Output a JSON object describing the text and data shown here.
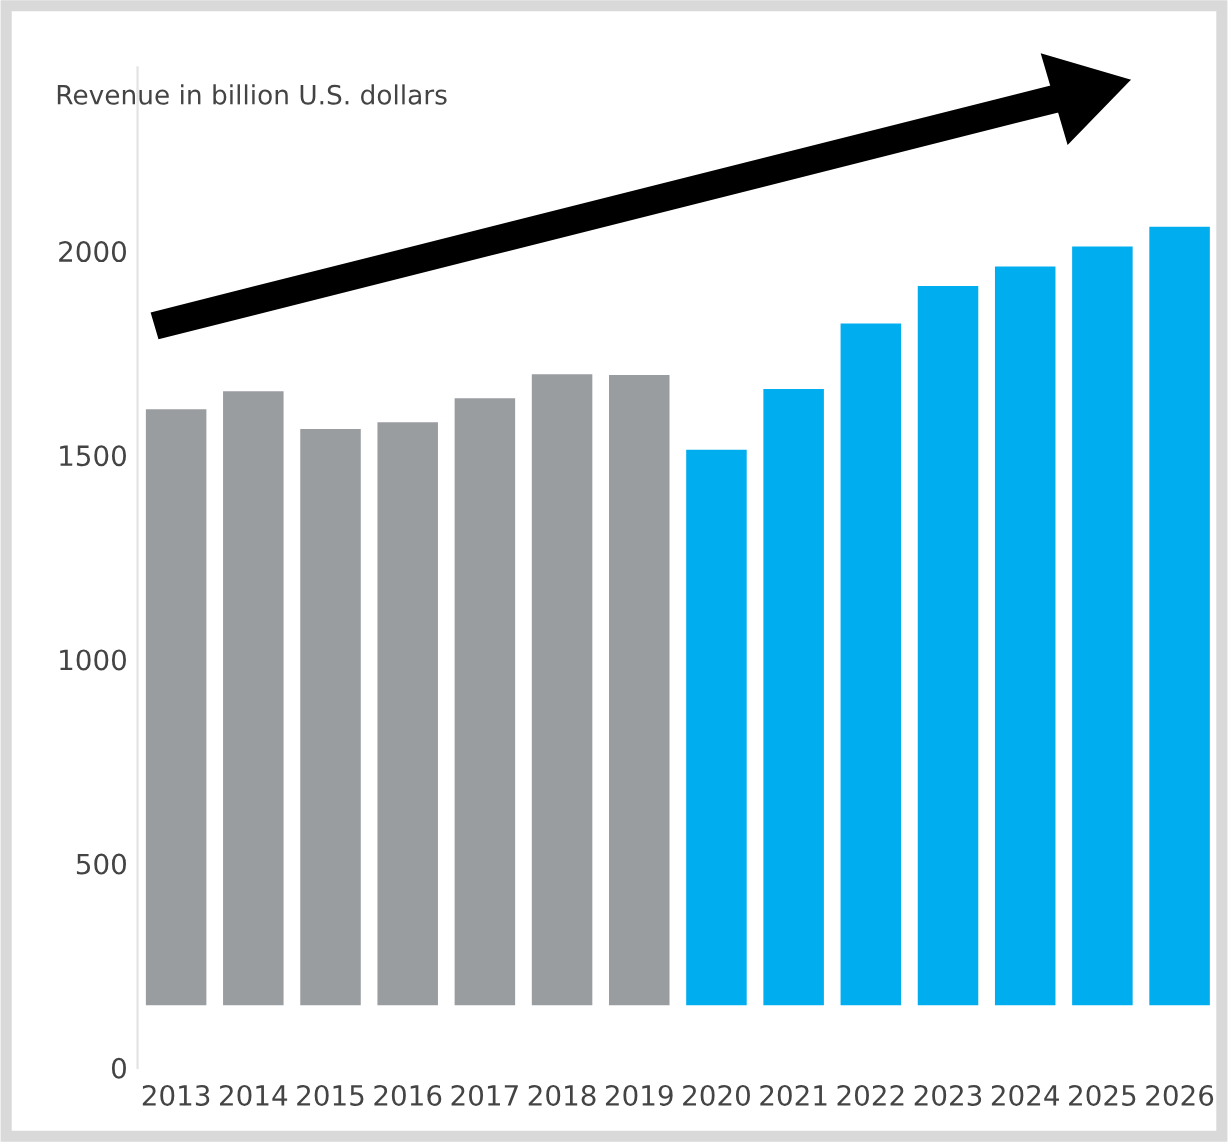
{
  "chart_data": {
    "type": "bar",
    "ylabel": "Revenue in billion U.S. dollars",
    "categories": [
      "2013",
      "2014",
      "2015",
      "2016",
      "2017",
      "2018",
      "2019",
      "2020",
      "2021",
      "2022",
      "2023",
      "2024",
      "2025",
      "2026"
    ],
    "base": [
      150,
      150,
      150,
      150,
      150,
      150,
      150,
      150,
      150,
      150,
      150,
      150,
      150,
      150
    ],
    "values": [
      1466,
      1510,
      1418,
      1434,
      1493,
      1552,
      1550,
      1367,
      1516,
      1676,
      1768,
      1816,
      1865,
      1913
    ],
    "colors": [
      "#9a9da0",
      "#9a9da0",
      "#9a9da0",
      "#9a9da0",
      "#9a9da0",
      "#9a9da0",
      "#9a9da0",
      "#00adee",
      "#00adee",
      "#00adee",
      "#00adee",
      "#00adee",
      "#00adee",
      "#00adee"
    ],
    "ylim": [
      0,
      2450
    ],
    "yticks": [
      0,
      500,
      1000,
      1500,
      2000
    ],
    "grid": false,
    "legend": false
  }
}
